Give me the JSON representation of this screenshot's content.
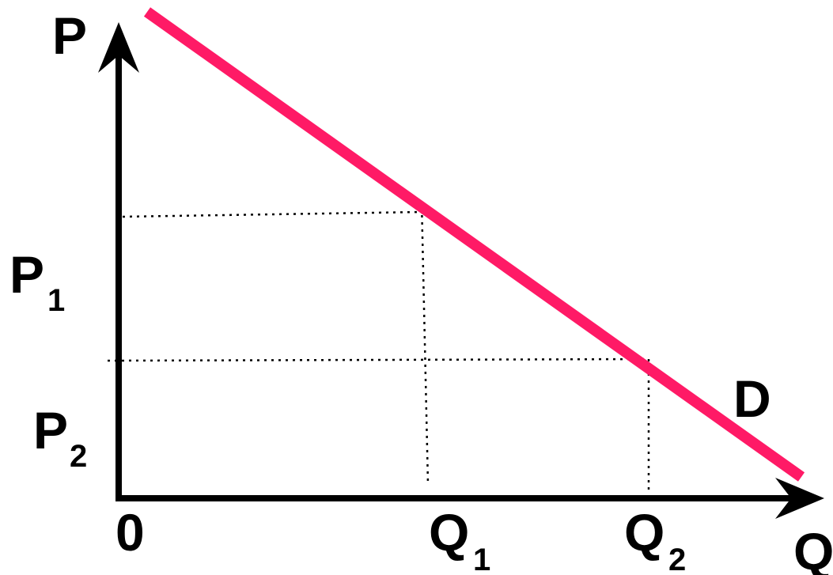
{
  "labels": {
    "y_axis": "P",
    "x_axis": "Q",
    "origin": "0",
    "p1": "P",
    "p1_sub": "1",
    "p2": "P",
    "p2_sub": "2",
    "q1": "Q",
    "q1_sub": "1",
    "q2": "Q",
    "q2_sub": "2",
    "curve": "D"
  },
  "colors": {
    "demand_curve": "#ff1a66",
    "axes": "#000000",
    "guides": "#000000"
  }
}
